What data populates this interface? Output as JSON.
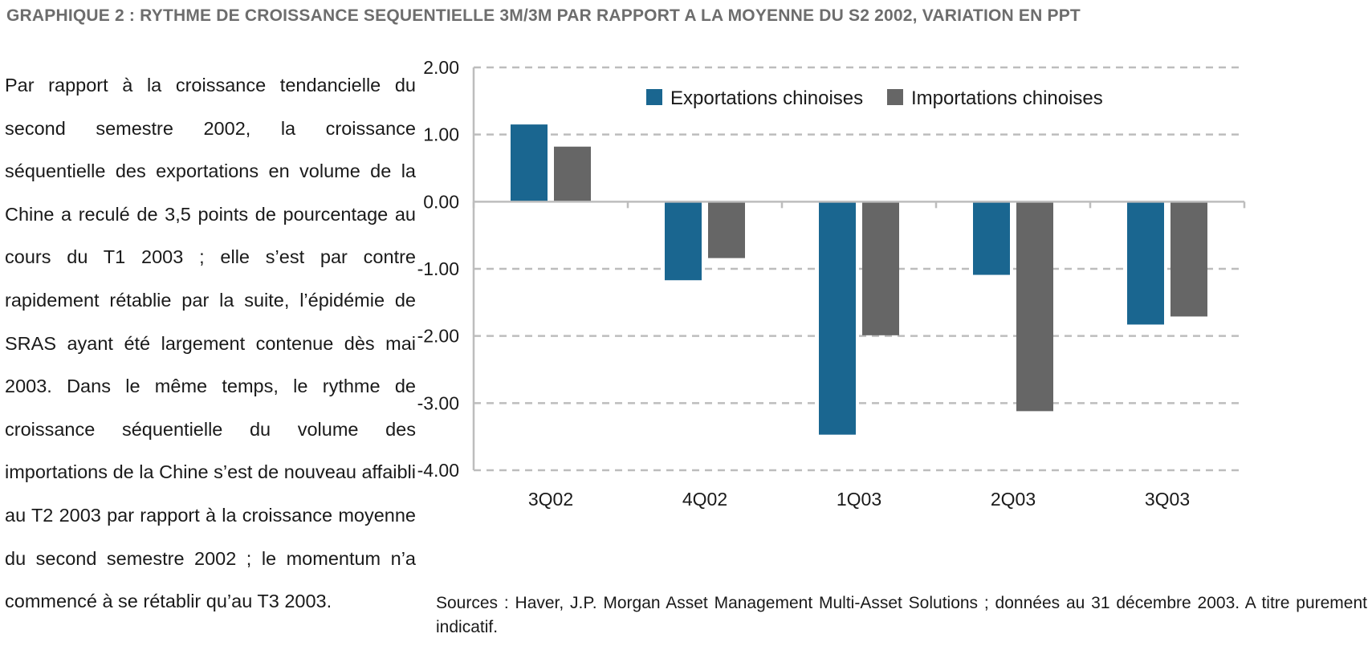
{
  "page": {
    "title": "GRAPHIQUE 2 : RYTHME DE CROISSANCE SEQUENTIELLE 3M/3M PAR RAPPORT A LA MOYENNE DU S2 2002, VARIATION EN PPT",
    "body_text": "Par rapport à la croissance tendancielle du second semestre 2002, la croissance séquentielle des exportations en volume de la Chine a reculé de 3,5 points de pourcentage au cours du T1 2003 ; elle s’est par contre rapidement rétablie par la suite, l’épidémie de SRAS ayant été largement contenue dès mai 2003. Dans le même temps, le rythme de croissance séquentielle du volume des importations de la Chine s’est de nouveau affaibli au T2 2003 par rapport à la croissance moyenne du second semestre 2002 ; le momentum n’a commencé à se rétablir qu’au T3 2003.",
    "source": "Sources : Haver, J.P. Morgan Asset Management Multi-Asset Solutions ; données au 31 décembre  2003. A titre purement indicatif."
  },
  "chart_data": {
    "type": "bar",
    "title": "",
    "xlabel": "",
    "ylabel": "",
    "categories": [
      "3Q02",
      "4Q02",
      "1Q03",
      "2Q03",
      "3Q03"
    ],
    "series": [
      {
        "name": "Exportations chinoises",
        "color": "#1a6690",
        "values": [
          1.15,
          -1.17,
          -3.47,
          -1.09,
          -1.83
        ]
      },
      {
        "name": "Importations chinoises",
        "color": "#666666",
        "values": [
          0.82,
          -0.84,
          -1.99,
          -3.12,
          -1.71
        ]
      }
    ],
    "ylim": [
      -4.0,
      2.0
    ],
    "yticks": [
      2.0,
      1.0,
      0.0,
      -1.0,
      -2.0,
      -3.0,
      -4.0
    ],
    "ytick_labels": [
      "2.00",
      "1.00",
      "0.00",
      "-1.00",
      "-2.00",
      "-3.00",
      "-4.00"
    ],
    "grid": true,
    "legend_position": "top-center"
  }
}
